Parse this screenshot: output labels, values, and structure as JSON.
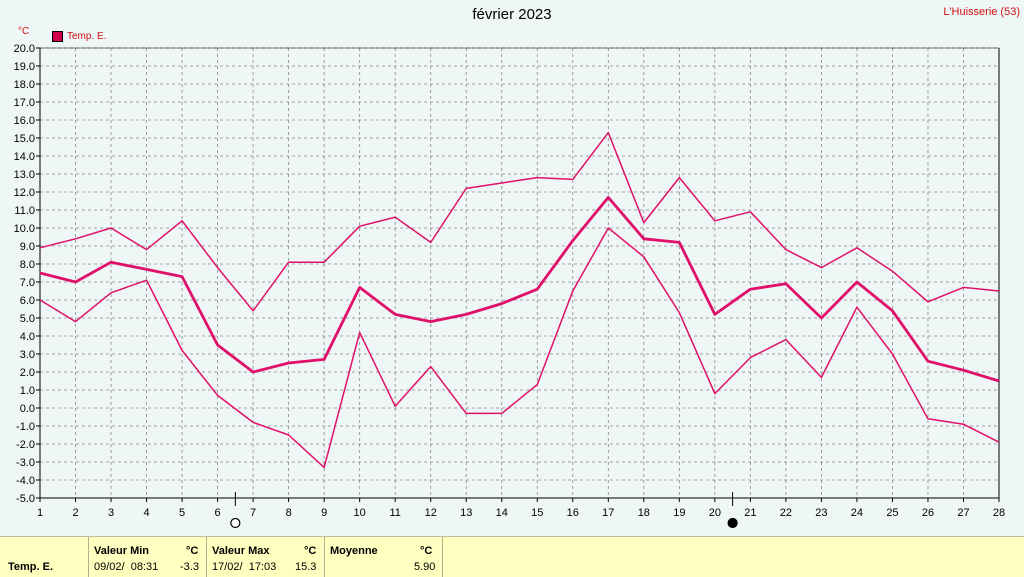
{
  "header": {
    "title": "février 2023",
    "station": "L'Huisserie (53)",
    "unit": "°C"
  },
  "legend": {
    "label": "Temp. E.",
    "color": "#d0004f"
  },
  "chart_data": {
    "type": "line",
    "x": [
      1,
      2,
      3,
      4,
      5,
      6,
      7,
      8,
      9,
      10,
      11,
      12,
      13,
      14,
      15,
      16,
      17,
      18,
      19,
      20,
      21,
      22,
      23,
      24,
      25,
      26,
      27,
      28
    ],
    "series": [
      {
        "values": [
          8.9,
          9.4,
          10.0,
          8.8,
          10.4,
          7.8,
          5.4,
          8.1,
          8.1,
          10.1,
          10.6,
          9.2,
          12.2,
          12.5,
          12.8,
          12.7,
          15.3,
          10.3,
          12.8,
          10.4,
          10.9,
          8.8,
          7.8,
          8.9,
          7.6,
          5.9,
          6.7,
          6.5
        ]
      },
      {
        "values": [
          7.5,
          7.0,
          8.1,
          7.7,
          7.3,
          3.5,
          2.0,
          2.5,
          2.7,
          6.7,
          5.2,
          4.8,
          5.2,
          5.8,
          6.6,
          9.3,
          11.7,
          9.4,
          9.2,
          5.2,
          6.6,
          6.9,
          5.0,
          7.0,
          5.4,
          2.6,
          2.1,
          1.5
        ]
      },
      {
        "values": [
          6.0,
          4.8,
          6.4,
          7.1,
          3.2,
          0.7,
          -0.8,
          -1.5,
          -3.3,
          4.2,
          0.1,
          2.3,
          -0.3,
          -0.3,
          1.3,
          6.5,
          10.0,
          8.4,
          5.3,
          0.8,
          2.8,
          3.8,
          1.7,
          5.6,
          3.0,
          -0.6,
          -0.9,
          -1.9
        ]
      }
    ],
    "xlim": [
      1,
      28
    ],
    "ylim": [
      -5,
      20
    ],
    "y_ticks": [
      "-5.0",
      "-4.0",
      "-3.0",
      "-2.0",
      "-1.0",
      "0.0",
      "1.0",
      "2.0",
      "3.0",
      "4.0",
      "5.0",
      "6.0",
      "7.0",
      "8.0",
      "9.0",
      "10.0",
      "11.0",
      "12.0",
      "13.0",
      "14.0",
      "15.0",
      "16.0",
      "17.0",
      "18.0",
      "19.0",
      "20.0"
    ],
    "x_ticks": [
      "1",
      "2",
      "3",
      "4",
      "5",
      "6",
      "7",
      "8",
      "9",
      "10",
      "11",
      "12",
      "13",
      "14",
      "15",
      "16",
      "17",
      "18",
      "19",
      "20",
      "21",
      "22",
      "23",
      "24",
      "25",
      "26",
      "27",
      "28"
    ],
    "grid": true,
    "line_color": "#e0106a",
    "moon_phases": [
      {
        "day": 6,
        "phase": "full-moon"
      },
      {
        "day": 20,
        "phase": "new-moon"
      }
    ]
  },
  "summary": {
    "row_label": "Temp. E.",
    "min_header": "Valeur Min",
    "min_date": "09/02/  08:31",
    "min_value": "-3.3",
    "max_header": "Valeur Max",
    "max_date": "17/02/  17:03",
    "max_value": "15.3",
    "avg_header": "Moyenne",
    "avg_value": "5.90",
    "unit": "°C"
  }
}
